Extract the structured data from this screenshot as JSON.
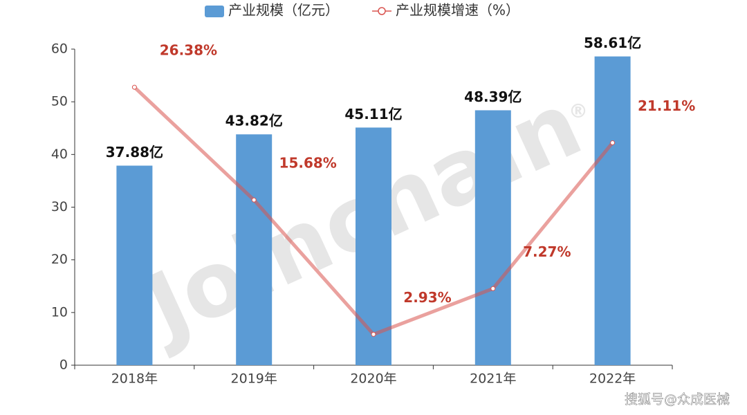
{
  "chart_data": {
    "type": "bar-line",
    "categories": [
      "2018年",
      "2019年",
      "2020年",
      "2021年",
      "2022年"
    ],
    "series": [
      {
        "name": "产业规模（亿元）",
        "type": "bar",
        "color": "#5b9bd5",
        "values": [
          37.88,
          43.82,
          45.11,
          48.39,
          58.61
        ],
        "value_labels": [
          "37.88亿",
          "43.82亿",
          "45.11亿",
          "48.39亿",
          "58.61亿"
        ]
      },
      {
        "name": "产业规模增速（%）",
        "type": "line",
        "axis": "y2",
        "color": "#d9534f",
        "values": [
          26.38,
          15.68,
          2.93,
          7.27,
          21.11
        ],
        "value_labels": [
          "26.38%",
          "15.68%",
          "2.93%",
          "7.27%",
          "21.11%"
        ]
      }
    ],
    "ylim": [
      0,
      60
    ],
    "yticks": [
      0,
      10,
      20,
      30,
      40,
      50,
      60
    ],
    "y2lim": [
      0,
      30
    ],
    "watermark": "Joinchain",
    "watermark_mark": "®",
    "source": "搜狐号@众成医械"
  }
}
